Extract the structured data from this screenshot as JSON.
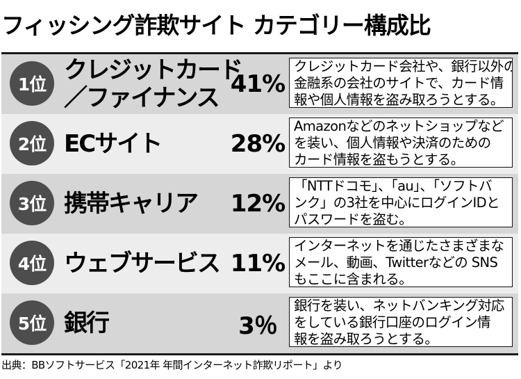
{
  "title": "フィッシング詐欺サイト カテゴリー構成比",
  "rows": [
    {
      "rank": "1位",
      "category_lines": [
        "クレジットカード",
        "／ファイナンス"
      ],
      "percent": "41%",
      "description_lines": [
        "クレジットカード会社や、銀行以外の",
        "金融系の会社のサイトで、カード情",
        "報や個人情報を盗み取ろうとする。"
      ]
    },
    {
      "rank": "2位",
      "category_lines": [
        "ECサイト"
      ],
      "percent": "28%",
      "description_lines": [
        "Amazonなどのネットショップなど",
        "を装い、個人情報や決済のための",
        "カード情報を盗もうとする。"
      ]
    },
    {
      "rank": "3位",
      "category_lines": [
        "携帯キャリア"
      ],
      "percent": "12%",
      "description_lines": [
        "「NTTドコモ」、「au」、「ソフトバ",
        "ンク」の3社を中心にログインIDと",
        "パスワードを盗む。"
      ]
    },
    {
      "rank": "4位",
      "category_lines": [
        "ウェブサービス"
      ],
      "percent": "11%",
      "description_lines": [
        "インターネットを通じたさまざまな",
        "メール、動画、Twitterなどの SNS",
        "もここに含まれる。"
      ]
    },
    {
      "rank": "5位",
      "category_lines": [
        "銀行"
      ],
      "percent": "3％",
      "description_lines": [
        "銀行を装い、ネットバンキング対応",
        "をしている銀行口座のログイン情",
        "報を盗み取ろうとする。"
      ]
    }
  ],
  "source": "出典：BBソフトサービス「2021年 年間インターネット詐欺リポート」より"
}
